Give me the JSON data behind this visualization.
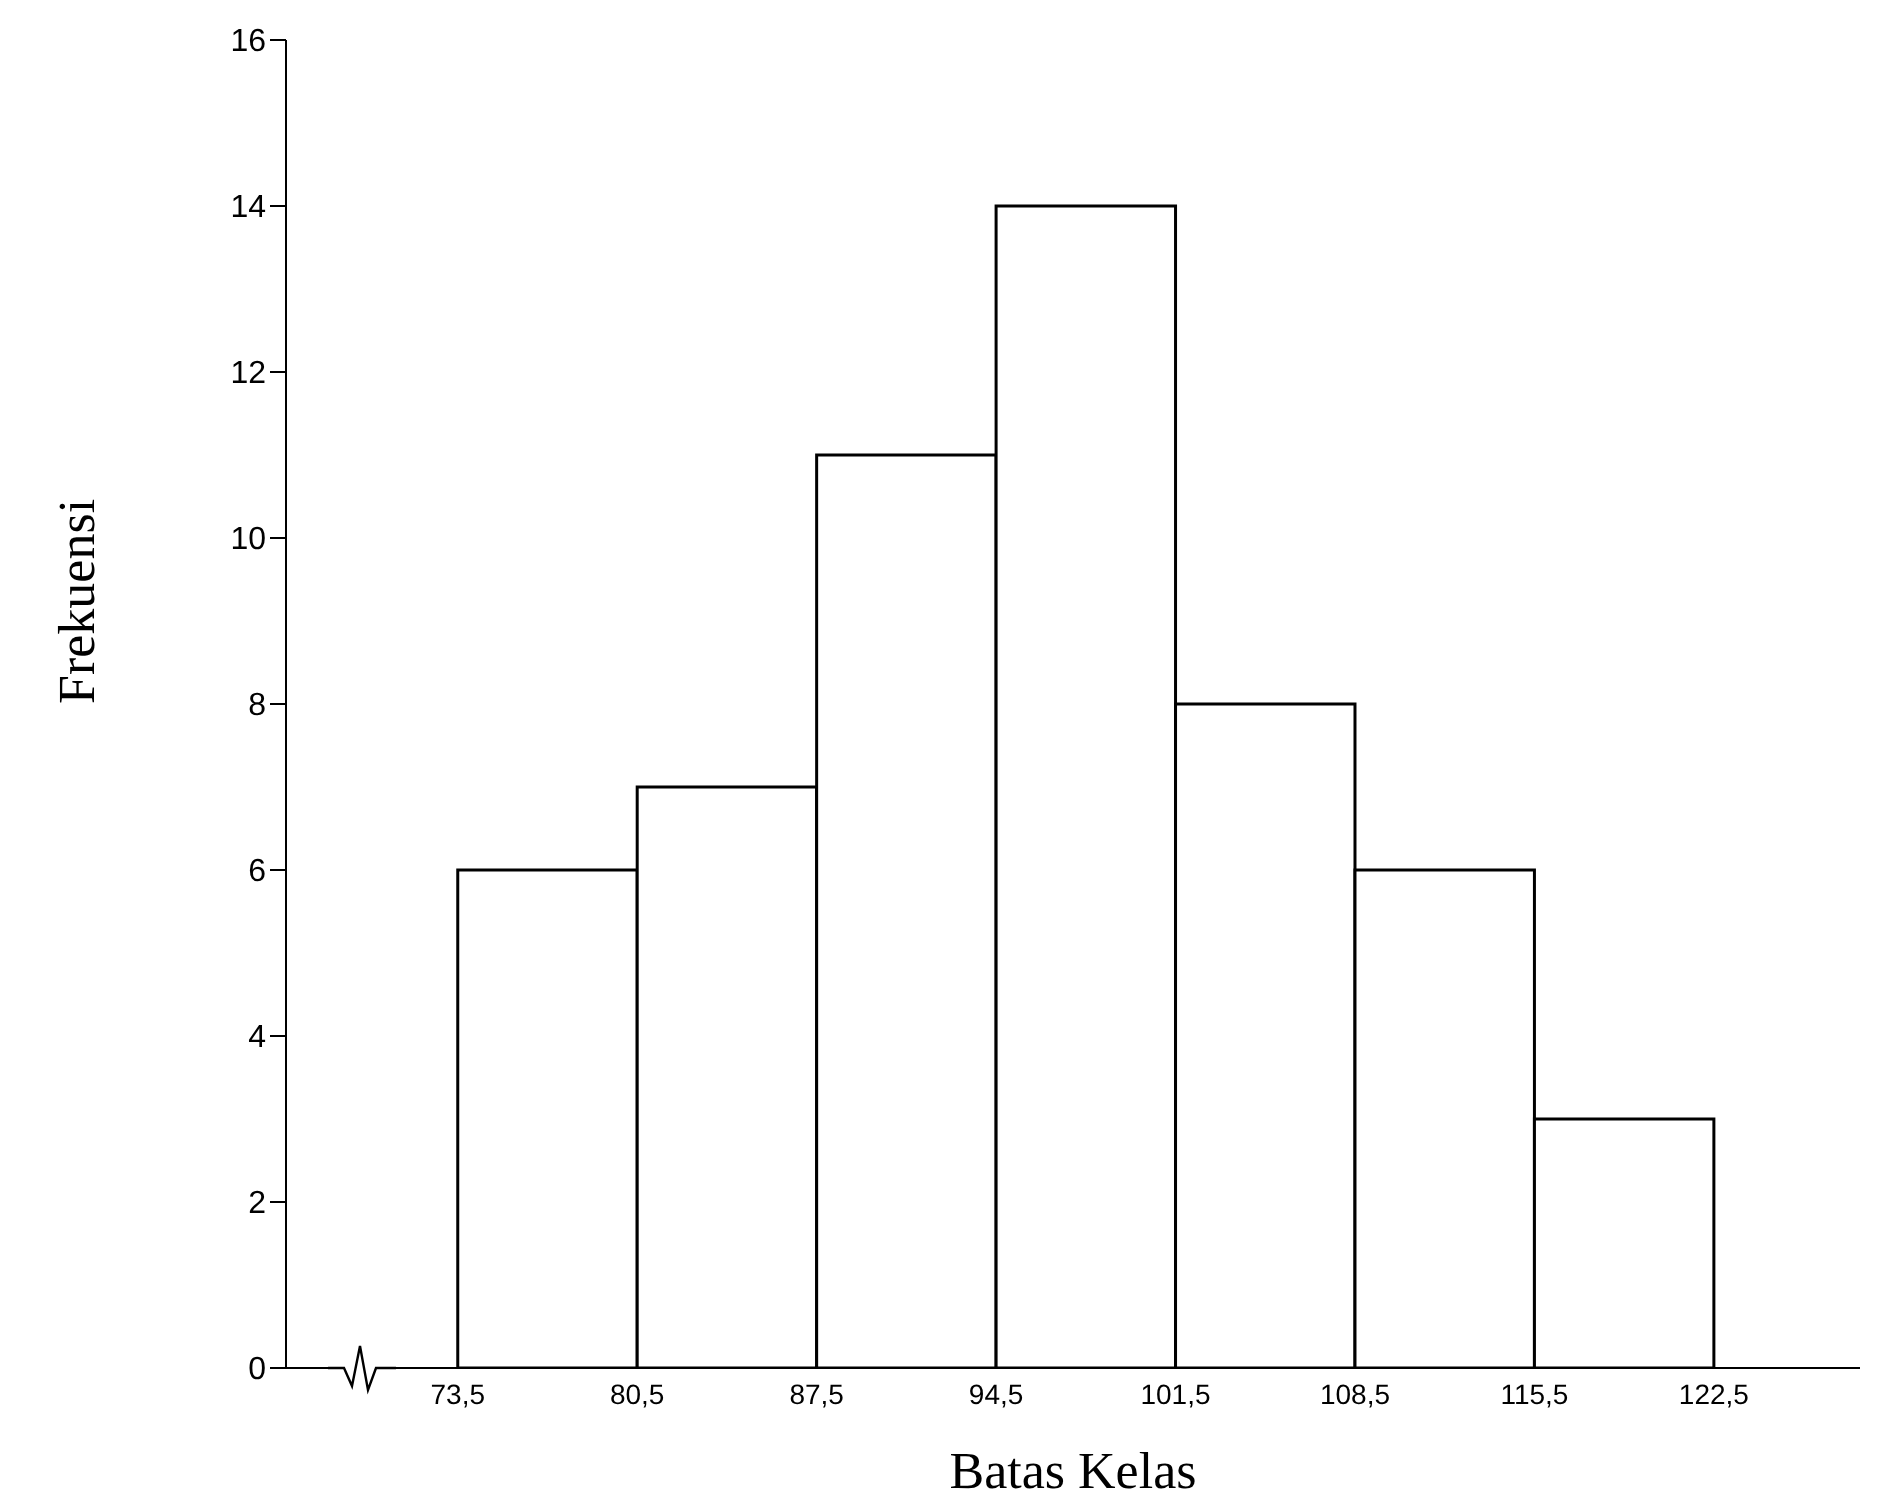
{
  "chart_data": {
    "type": "histogram",
    "xlabel": "Batas Kelas",
    "ylabel": "Frekuensi",
    "bins": [
      73.5,
      80.5,
      87.5,
      94.5,
      101.5,
      108.5,
      115.5,
      122.5
    ],
    "values": [
      6,
      7,
      11,
      14,
      8,
      6,
      3
    ],
    "color": "#ffffff",
    "xlim": [
      66.8,
      128.2
    ],
    "xticks": [
      {
        "value": 73.5,
        "label": "73,5"
      },
      {
        "value": 80.5,
        "label": "80,5"
      },
      {
        "value": 87.5,
        "label": "87,5"
      },
      {
        "value": 94.5,
        "label": "94,5"
      },
      {
        "value": 101.5,
        "label": "101,5"
      },
      {
        "value": 108.5,
        "label": "108,5"
      },
      {
        "value": 115.5,
        "label": "115,5"
      },
      {
        "value": 122.5,
        "label": "122,5"
      }
    ],
    "ylim": [
      0,
      16
    ],
    "yticks": [
      0,
      2,
      4,
      6,
      8,
      10,
      12,
      14,
      16
    ],
    "grid": false,
    "legend": false
  }
}
